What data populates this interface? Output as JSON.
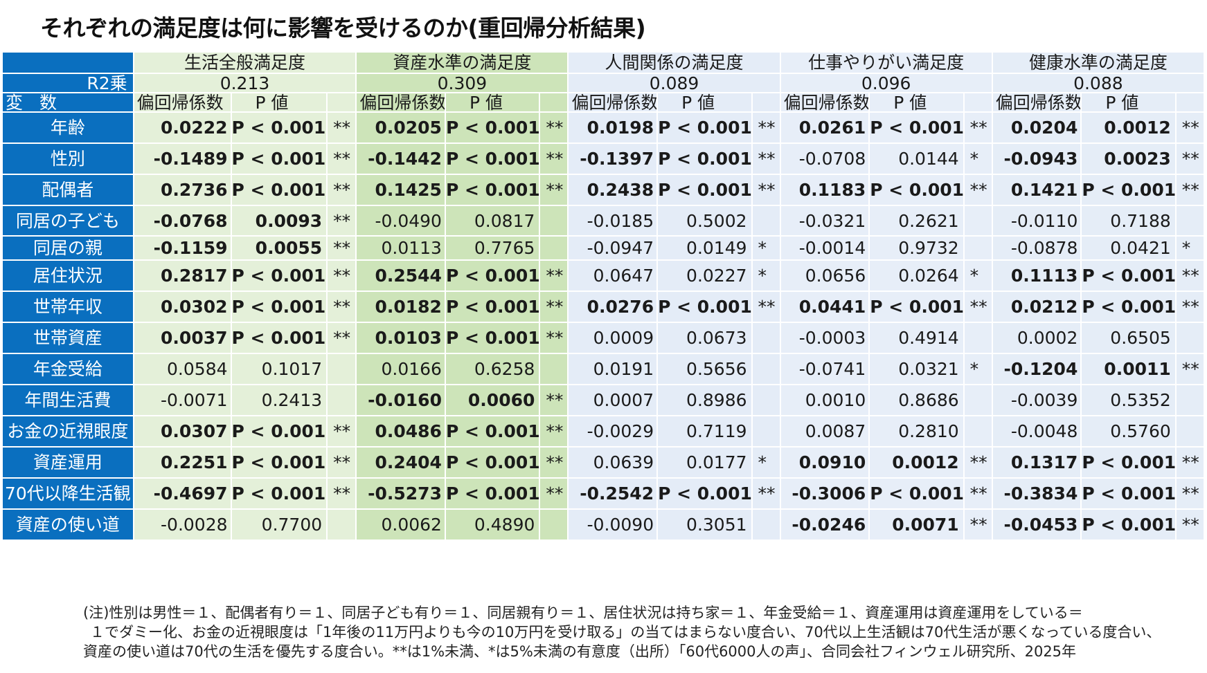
{
  "title": "それぞれの満足度は何に影響を受けるのか(重回帰分析結果)",
  "groups": [
    {
      "name": "生活全般満足度",
      "r2": "0.213",
      "cls": "g1"
    },
    {
      "name": "資産水準の満足度",
      "r2": "0.309",
      "cls": "g2"
    },
    {
      "name": "人間関係の満足度",
      "r2": "0.089",
      "cls": "b3"
    },
    {
      "name": "仕事やりがい満足度",
      "r2": "0.096",
      "cls": "b4"
    },
    {
      "name": "健康水準の満足度",
      "r2": "0.088",
      "cls": "b5"
    }
  ],
  "r2_label": "R2乗",
  "var_label": "変 数",
  "coef_header": "偏回帰係数",
  "p_header": "P  値",
  "rows": [
    {
      "var": "年齢",
      "cells": [
        [
          "0.0222",
          "P < 0.001",
          "**",
          true
        ],
        [
          "0.0205",
          "P < 0.001",
          "**",
          true
        ],
        [
          "0.0198",
          "P < 0.001",
          "**",
          true
        ],
        [
          "0.0261",
          "P < 0.001",
          "**",
          true
        ],
        [
          "0.0204",
          "0.0012",
          "**",
          true
        ]
      ]
    },
    {
      "var": "性別",
      "cells": [
        [
          "-0.1489",
          "P < 0.001",
          "**",
          true
        ],
        [
          "-0.1442",
          "P < 0.001",
          "**",
          true
        ],
        [
          "-0.1397",
          "P < 0.001",
          "**",
          true
        ],
        [
          "-0.0708",
          "0.0144",
          "*",
          false
        ],
        [
          "-0.0943",
          "0.0023",
          "**",
          true
        ]
      ]
    },
    {
      "var": "配偶者",
      "cells": [
        [
          "0.2736",
          "P < 0.001",
          "**",
          true
        ],
        [
          "0.1425",
          "P < 0.001",
          "**",
          true
        ],
        [
          "0.2438",
          "P < 0.001",
          "**",
          true
        ],
        [
          "0.1183",
          "P < 0.001",
          "**",
          true
        ],
        [
          "0.1421",
          "P < 0.001",
          "**",
          true
        ]
      ]
    },
    {
      "var": "同居の子ども",
      "cells": [
        [
          "-0.0768",
          "0.0093",
          "**",
          true
        ],
        [
          "-0.0490",
          "0.0817",
          "",
          false
        ],
        [
          "-0.0185",
          "0.5002",
          "",
          false
        ],
        [
          "-0.0321",
          "0.2621",
          "",
          false
        ],
        [
          "-0.0110",
          "0.7188",
          "",
          false
        ]
      ]
    },
    {
      "var": "同居の親",
      "cells": [
        [
          "-0.1159",
          "0.0055",
          "**",
          true
        ],
        [
          "0.0113",
          "0.7765",
          "",
          false
        ],
        [
          "-0.0947",
          "0.0149",
          "*",
          false
        ],
        [
          "-0.0014",
          "0.9732",
          "",
          false
        ],
        [
          "-0.0878",
          "0.0421",
          "*",
          false
        ]
      ]
    },
    {
      "var": "居住状況",
      "cells": [
        [
          "0.2817",
          "P < 0.001",
          "**",
          true
        ],
        [
          "0.2544",
          "P < 0.001",
          "**",
          true
        ],
        [
          "0.0647",
          "0.0227",
          "*",
          false
        ],
        [
          "0.0656",
          "0.0264",
          "*",
          false
        ],
        [
          "0.1113",
          "P < 0.001",
          "**",
          true
        ]
      ]
    },
    {
      "var": "世帯年収",
      "cells": [
        [
          "0.0302",
          "P < 0.001",
          "**",
          true
        ],
        [
          "0.0182",
          "P < 0.001",
          "**",
          true
        ],
        [
          "0.0276",
          "P < 0.001",
          "**",
          true
        ],
        [
          "0.0441",
          "P < 0.001",
          "**",
          true
        ],
        [
          "0.0212",
          "P < 0.001",
          "**",
          true
        ]
      ]
    },
    {
      "var": "世帯資産",
      "cells": [
        [
          "0.0037",
          "P < 0.001",
          "**",
          true
        ],
        [
          "0.0103",
          "P < 0.001",
          "**",
          true
        ],
        [
          "0.0009",
          "0.0673",
          "",
          false
        ],
        [
          "-0.0003",
          "0.4914",
          "",
          false
        ],
        [
          "0.0002",
          "0.6505",
          "",
          false
        ]
      ]
    },
    {
      "var": "年金受給",
      "cells": [
        [
          "0.0584",
          "0.1017",
          "",
          false
        ],
        [
          "0.0166",
          "0.6258",
          "",
          false
        ],
        [
          "0.0191",
          "0.5656",
          "",
          false
        ],
        [
          "-0.0741",
          "0.0321",
          "*",
          false
        ],
        [
          "-0.1204",
          "0.0011",
          "**",
          true
        ]
      ]
    },
    {
      "var": "年間生活費",
      "cells": [
        [
          "-0.0071",
          "0.2413",
          "",
          false
        ],
        [
          "-0.0160",
          "0.0060",
          "**",
          true
        ],
        [
          "0.0007",
          "0.8986",
          "",
          false
        ],
        [
          "0.0010",
          "0.8686",
          "",
          false
        ],
        [
          "-0.0039",
          "0.5352",
          "",
          false
        ]
      ]
    },
    {
      "var": "お金の近視眼度",
      "cells": [
        [
          "0.0307",
          "P < 0.001",
          "**",
          true
        ],
        [
          "0.0486",
          "P < 0.001",
          "**",
          true
        ],
        [
          "-0.0029",
          "0.7119",
          "",
          false
        ],
        [
          "0.0087",
          "0.2810",
          "",
          false
        ],
        [
          "-0.0048",
          "0.5760",
          "",
          false
        ]
      ]
    },
    {
      "var": "資産運用",
      "cells": [
        [
          "0.2251",
          "P < 0.001",
          "**",
          true
        ],
        [
          "0.2404",
          "P < 0.001",
          "**",
          true
        ],
        [
          "0.0639",
          "0.0177",
          "*",
          false
        ],
        [
          "0.0910",
          "0.0012",
          "**",
          true
        ],
        [
          "0.1317",
          "P < 0.001",
          "**",
          true
        ]
      ]
    },
    {
      "var": "70代以降生活観",
      "cells": [
        [
          "-0.4697",
          "P < 0.001",
          "**",
          true
        ],
        [
          "-0.5273",
          "P < 0.001",
          "**",
          true
        ],
        [
          "-0.2542",
          "P < 0.001",
          "**",
          true
        ],
        [
          "-0.3006",
          "P < 0.001",
          "**",
          true
        ],
        [
          "-0.3834",
          "P < 0.001",
          "**",
          true
        ]
      ]
    },
    {
      "var": "資産の使い道",
      "cells": [
        [
          "-0.0028",
          "0.7700",
          "",
          false
        ],
        [
          "0.0062",
          "0.4890",
          "",
          false
        ],
        [
          "-0.0090",
          "0.3051",
          "",
          false
        ],
        [
          "-0.0246",
          "0.0071",
          "**",
          true
        ],
        [
          "-0.0453",
          "P < 0.001",
          "**",
          true
        ]
      ]
    }
  ],
  "note": {
    "line1": "(注)性別は男性＝１、配偶者有り＝１、同居子ども有り＝１、同居親有り＝１、居住状況は持ち家＝１、年金受給＝１、資産運用は資産運用をしている＝",
    "line2": "１でダミー化、お金の近視眼度は「1年後の11万円よりも今の10万円を受け取る」の当てはまらない度合い、70代以上生活観は70代生活が悪くなっている度合い、",
    "line3": "資産の使い道は70代の生活を優先する度合い。**は1%未満、*は5%未満の有意度（出所）「60代6000人の声」、合同会社フィンウェル研究所、2025年"
  },
  "colors": {
    "header_blue": "#0a6fbf",
    "green_light": "#e4f0d9",
    "green_mid": "#cde4b9",
    "blue_light": "#e4ecf7"
  }
}
